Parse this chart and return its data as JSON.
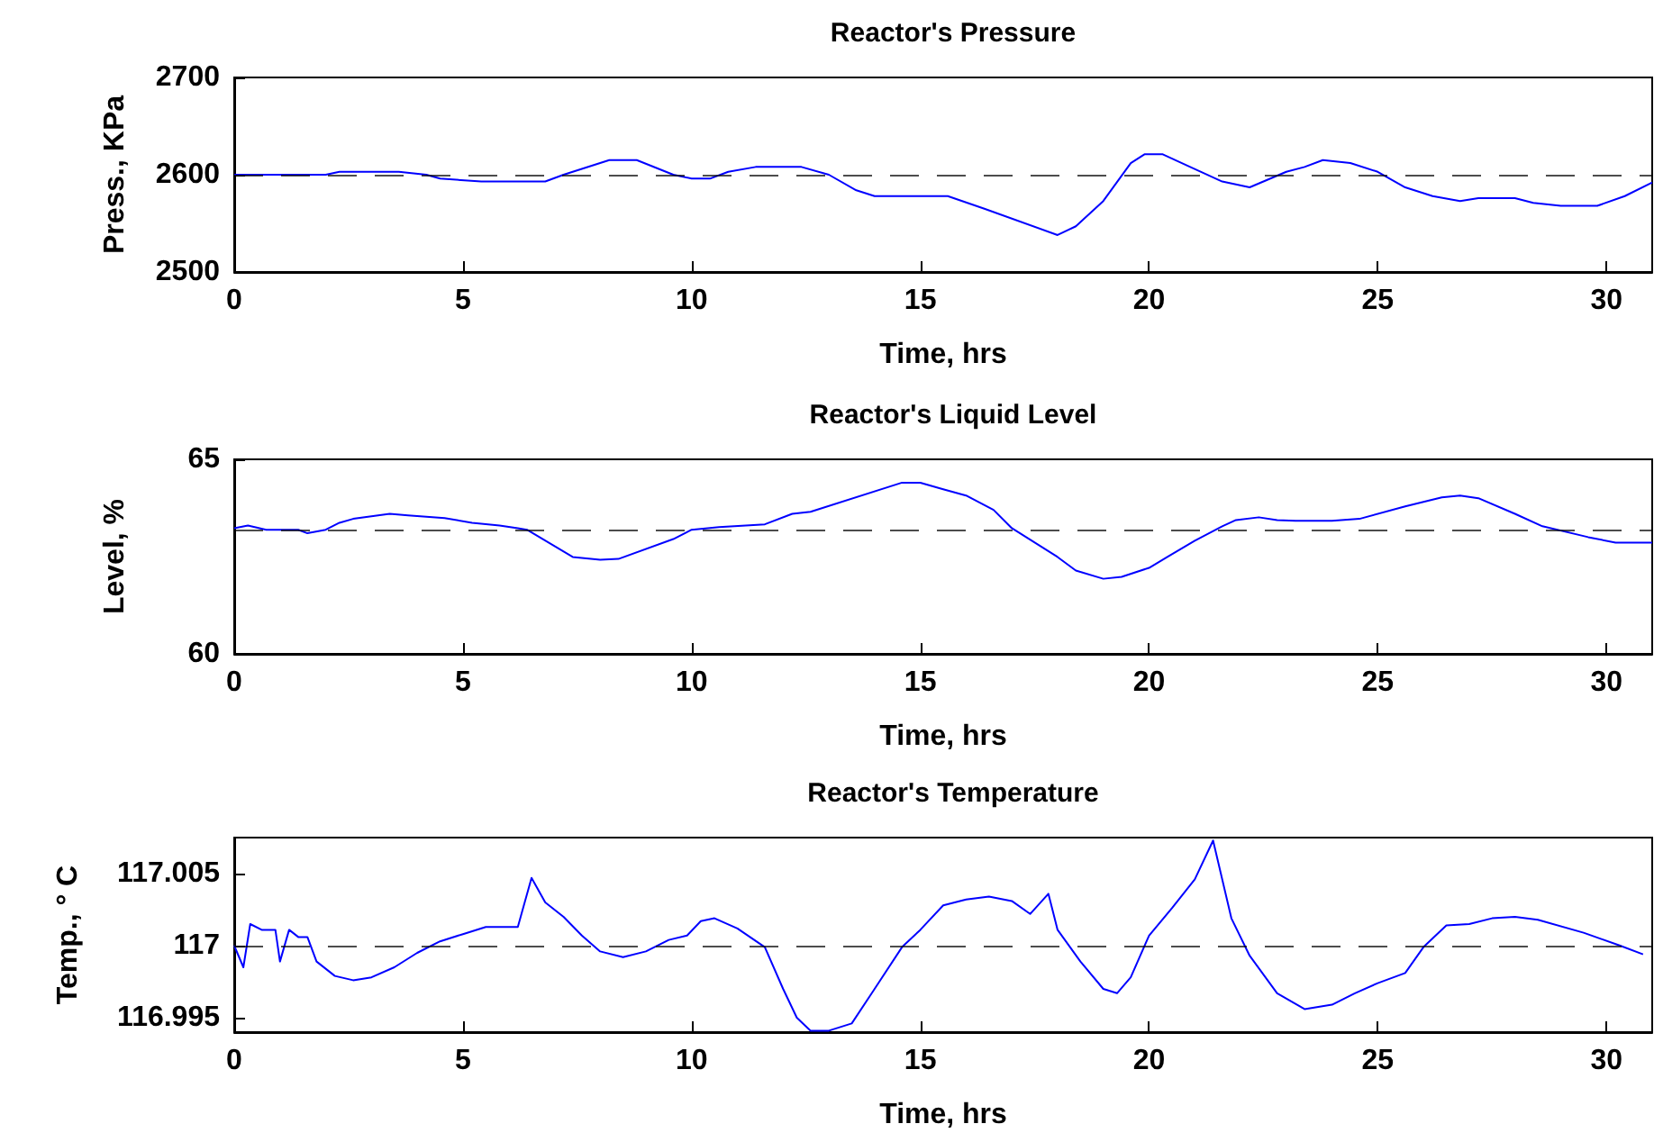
{
  "chart_data": [
    {
      "type": "line",
      "title": "Reactor's Pressure",
      "xlabel": "Time, hrs",
      "ylabel": "Press., KPa",
      "xlim": [
        0,
        31
      ],
      "xticks": [
        0,
        5,
        10,
        15,
        20,
        25,
        30
      ],
      "ylim": [
        2500,
        2700
      ],
      "yticks": [
        2500,
        2600,
        2700
      ],
      "ref_lines": [
        {
          "axis": "y",
          "value": 2600,
          "color": "#000000",
          "line_style": "dashed"
        }
      ],
      "series": [
        {
          "color": "#0000ff",
          "x": [
            0,
            2.0,
            2.3,
            3.6,
            4.2,
            4.5,
            5.4,
            6.8,
            7.2,
            8.2,
            8.8,
            9.6,
            10.0,
            10.4,
            10.8,
            11.4,
            12.4,
            13.0,
            13.6,
            14.0,
            15.0,
            15.6,
            16.4,
            18.0,
            18.4,
            19.0,
            19.6,
            19.9,
            20.3,
            20.9,
            21.6,
            22.2,
            23.0,
            23.4,
            23.8,
            24.4,
            25.0,
            25.6,
            26.2,
            26.8,
            27.2,
            28.0,
            28.4,
            29.0,
            29.8,
            30.4,
            31.0
          ],
          "values": [
            2600,
            2600,
            2603,
            2603,
            2600,
            2596,
            2593,
            2593,
            2600,
            2615,
            2615,
            2600,
            2596,
            2596,
            2603,
            2608,
            2608,
            2600,
            2584,
            2578,
            2578,
            2578,
            2565,
            2538,
            2547,
            2573,
            2612,
            2621,
            2621,
            2608,
            2593,
            2587,
            2603,
            2608,
            2615,
            2612,
            2603,
            2587,
            2578,
            2573,
            2576,
            2576,
            2571,
            2568,
            2568,
            2578,
            2592
          ]
        }
      ]
    },
    {
      "type": "line",
      "title": "Reactor's Liquid Level",
      "xlabel": "Time, hrs",
      "ylabel": "Level, %",
      "xlim": [
        0,
        31
      ],
      "xticks": [
        0,
        5,
        10,
        15,
        20,
        25,
        30
      ],
      "ylim": [
        60,
        65
      ],
      "yticks": [
        60,
        65
      ],
      "ref_lines": [
        {
          "axis": "y",
          "value": 63.2,
          "color": "#000000",
          "line_style": "dashed"
        }
      ],
      "series": [
        {
          "color": "#0000ff",
          "x": [
            0,
            0.3,
            0.7,
            1.4,
            1.6,
            2.0,
            2.3,
            2.6,
            3.4,
            3.8,
            4.6,
            5.2,
            5.8,
            6.2,
            6.4,
            7.4,
            8.0,
            8.4,
            9.6,
            10.0,
            10.6,
            11.6,
            12.2,
            12.6,
            14.6,
            15.0,
            15.5,
            16.0,
            16.6,
            17.0,
            18.0,
            18.4,
            19.0,
            19.4,
            20.0,
            20.4,
            21.0,
            21.6,
            21.9,
            22.4,
            22.8,
            23.2,
            24.0,
            24.6,
            25.6,
            26.4,
            26.8,
            27.2,
            28.0,
            28.6,
            29.6,
            30.2,
            31.0
          ],
          "values": [
            63.23,
            63.3,
            63.19,
            63.19,
            63.1,
            63.19,
            63.37,
            63.47,
            63.6,
            63.56,
            63.49,
            63.37,
            63.3,
            63.23,
            63.19,
            62.49,
            62.42,
            62.44,
            62.95,
            63.19,
            63.26,
            63.33,
            63.6,
            63.65,
            64.4,
            64.4,
            64.23,
            64.07,
            63.7,
            63.23,
            62.49,
            62.14,
            61.93,
            61.98,
            62.21,
            62.49,
            62.91,
            63.28,
            63.44,
            63.51,
            63.44,
            63.42,
            63.42,
            63.47,
            63.79,
            64.02,
            64.07,
            64.0,
            63.6,
            63.28,
            63.0,
            62.86,
            62.86
          ]
        }
      ]
    },
    {
      "type": "line",
      "title": "Reactor's Temperature",
      "xlabel": "Time, hrs",
      "ylabel": "Temp., ° C",
      "xlim": [
        0,
        31
      ],
      "xticks": [
        0,
        5,
        10,
        15,
        20,
        25,
        30
      ],
      "ylim": [
        116.994,
        117.0075
      ],
      "yticks": [
        116.995,
        117,
        117.005
      ],
      "ref_lines": [
        {
          "axis": "y",
          "value": 117,
          "color": "#000000",
          "line_style": "dashed"
        }
      ],
      "series": [
        {
          "color": "#0000ff",
          "x": [
            0,
            0.2,
            0.35,
            0.6,
            0.9,
            1.0,
            1.2,
            1.4,
            1.6,
            1.8,
            2.2,
            2.6,
            3.0,
            3.5,
            4.0,
            4.5,
            5.0,
            5.5,
            6.0,
            6.2,
            6.5,
            6.8,
            7.2,
            7.6,
            8.0,
            8.5,
            9.0,
            9.5,
            9.9,
            10.2,
            10.5,
            11.0,
            11.6,
            12.0,
            12.3,
            12.6,
            13.0,
            13.5,
            14.0,
            14.6,
            15.0,
            15.5,
            16.0,
            16.5,
            17.0,
            17.4,
            17.8,
            18.0,
            18.5,
            19.0,
            19.3,
            19.6,
            20.0,
            20.5,
            21.0,
            21.4,
            21.8,
            22.2,
            22.8,
            23.4,
            24.0,
            24.5,
            25.0,
            25.6,
            26.0,
            26.5,
            27.0,
            27.5,
            28.0,
            28.5,
            29.5,
            30.3,
            30.8
          ],
          "values": [
            117.0,
            116.9985,
            117.0015,
            117.0011,
            117.0011,
            116.9989,
            117.0011,
            117.0006,
            117.0006,
            116.9989,
            116.9979,
            116.9976,
            116.9978,
            116.9985,
            116.9995,
            117.0003,
            117.0008,
            117.0013,
            117.0013,
            117.0013,
            117.0047,
            117.003,
            117.002,
            117.0007,
            116.9996,
            116.9992,
            116.9996,
            117.0004,
            117.0007,
            117.0017,
            117.0019,
            117.0012,
            116.9999,
            116.997,
            116.995,
            116.9941,
            116.9941,
            116.9946,
            116.997,
            116.9999,
            117.0011,
            117.0028,
            117.0032,
            117.0034,
            117.0031,
            117.0022,
            117.0036,
            117.0011,
            116.9989,
            116.997,
            116.9967,
            116.9978,
            117.0007,
            117.0026,
            117.0046,
            117.0073,
            117.0019,
            116.9993,
            116.9967,
            116.9956,
            116.9959,
            116.9967,
            116.9974,
            116.9981,
            116.9999,
            117.0014,
            117.0015,
            117.0019,
            117.002,
            117.0018,
            117.0009,
            117.0,
            116.9994
          ]
        }
      ]
    }
  ]
}
